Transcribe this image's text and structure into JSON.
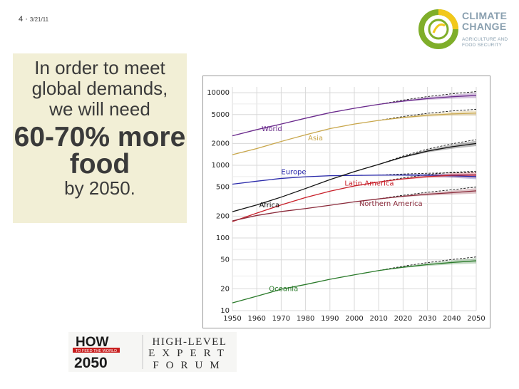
{
  "slide": {
    "number": "4",
    "date": "3/21/11"
  },
  "logo": {
    "line1": "CLIMATE",
    "line2": "CHANGE",
    "line3": "AGRICULTURE AND",
    "line4": "FOOD SECURITY"
  },
  "textbox": {
    "intro": "In order to meet global demands, we will need",
    "highlight": "60-70% more food",
    "suffix": "by 2050."
  },
  "bottom_logos": {
    "how": "HOW",
    "tagline": "TO FEED THE WORLD",
    "year": "2050",
    "hlef_line1": "HIGH-LEVEL",
    "hlef_line2": "EXPERT",
    "hlef_line3": "FORUM"
  },
  "chart_data": {
    "type": "line",
    "yscale": "log",
    "x": [
      1950,
      1960,
      1970,
      1980,
      1990,
      2000,
      2010,
      2020,
      2030,
      2040,
      2050
    ],
    "xticks": [
      "1950",
      "1960",
      "1970",
      "1980",
      "1990",
      "2000",
      "2010",
      "2020",
      "2030",
      "2040",
      "2050"
    ],
    "yticks": [
      10,
      20,
      50,
      100,
      200,
      500,
      1000,
      2000,
      5000,
      10000
    ],
    "ytick_labels": [
      "10",
      "20",
      "50",
      "100",
      "200",
      "500",
      "1000",
      "2000",
      "5000",
      "10000"
    ],
    "xlim": [
      1950,
      2050
    ],
    "ylim": [
      10,
      12000
    ],
    "grid": true,
    "colors": {
      "World": "#6a2a8c",
      "Asia": "#c8a64a",
      "Europe": "#2a2aaa",
      "Africa": "#111111",
      "Latin America": "#c8202a",
      "Northern America": "#8a2a3a",
      "Oceania": "#2a7a2a"
    },
    "series": [
      {
        "name": "World",
        "values": [
          2550,
          3100,
          3700,
          4450,
          5300,
          6100,
          6900,
          7650,
          8300,
          8800,
          9150
        ]
      },
      {
        "name": "Asia",
        "values": [
          1400,
          1700,
          2130,
          2630,
          3200,
          3700,
          4150,
          4550,
          4880,
          5100,
          5230
        ]
      },
      {
        "name": "Europe",
        "values": [
          550,
          605,
          660,
          695,
          720,
          726,
          733,
          735,
          730,
          718,
          700
        ]
      },
      {
        "name": "Africa",
        "values": [
          230,
          285,
          365,
          480,
          635,
          820,
          1030,
          1300,
          1570,
          1800,
          2000
        ]
      },
      {
        "name": "Latin America",
        "values": [
          168,
          220,
          285,
          360,
          440,
          520,
          590,
          650,
          700,
          730,
          735
        ]
      },
      {
        "name": "Northern America",
        "values": [
          172,
          204,
          231,
          254,
          282,
          315,
          345,
          375,
          400,
          420,
          445
        ]
      },
      {
        "name": "Oceania",
        "values": [
          12.8,
          15.8,
          19.7,
          22.9,
          27,
          31.1,
          35.6,
          39.6,
          43,
          46,
          48.5
        ]
      }
    ]
  }
}
